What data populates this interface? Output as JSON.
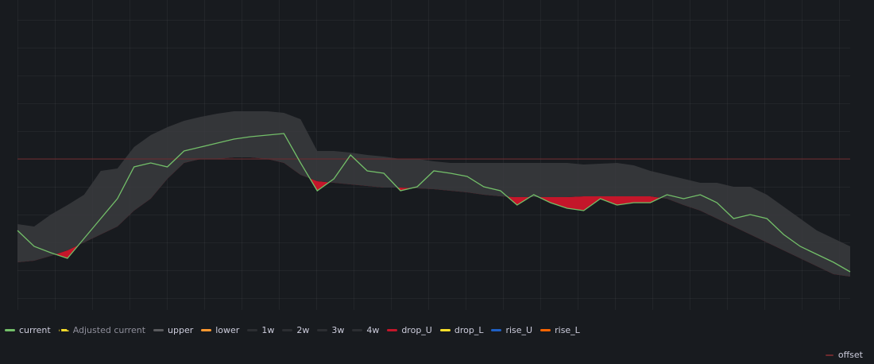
{
  "chart_data": {
    "type": "band-line",
    "ylim": [
      0,
      400
    ],
    "series": [
      {
        "name": "current",
        "color": "#73bf69",
        "role": "line",
        "values": [
          110,
          90,
          82,
          75,
          100,
          125,
          150,
          190,
          195,
          190,
          210,
          215,
          220,
          225,
          228,
          230,
          232,
          195,
          160,
          175,
          205,
          185,
          182,
          160,
          165,
          185,
          182,
          178,
          165,
          160,
          142,
          155,
          145,
          138,
          135,
          150,
          142,
          145,
          145,
          155,
          150,
          155,
          145,
          125,
          130,
          125,
          105,
          90,
          80,
          70,
          58
        ]
      },
      {
        "name": "Adjusted current",
        "color": "#fade2a",
        "dotted": true
      },
      {
        "name": "upper",
        "color": "#5a5b5e",
        "role": "upper",
        "values": [
          118,
          115,
          130,
          142,
          155,
          185,
          188,
          215,
          230,
          240,
          248,
          253,
          257,
          260,
          260,
          260,
          258,
          250,
          210,
          210,
          208,
          205,
          203,
          200,
          200,
          197,
          195,
          195,
          195,
          195,
          195,
          195,
          195,
          195,
          193,
          194,
          195,
          192,
          185,
          180,
          175,
          170,
          170,
          165,
          165,
          155,
          140,
          125,
          110,
          100,
          90
        ]
      },
      {
        "name": "lower",
        "color": "#ff9830",
        "role": "lower",
        "values": [
          70,
          72,
          78,
          85,
          95,
          105,
          115,
          135,
          150,
          175,
          195,
          200,
          200,
          202,
          202,
          200,
          195,
          180,
          172,
          170,
          168,
          166,
          164,
          164,
          163,
          162,
          160,
          158,
          155,
          153,
          152,
          152,
          152,
          152,
          153,
          153,
          153,
          153,
          153,
          150,
          142,
          135,
          125,
          115,
          105,
          95,
          85,
          75,
          65,
          55,
          52
        ]
      },
      {
        "name": "1w",
        "color": "#2c2e32"
      },
      {
        "name": "2w",
        "color": "#2c2e32"
      },
      {
        "name": "3w",
        "color": "#2c2e32"
      },
      {
        "name": "4w",
        "color": "#2c2e32"
      },
      {
        "name": "drop_U",
        "color": "#c4162a",
        "role": "drop"
      },
      {
        "name": "drop_L",
        "color": "#fade2a"
      },
      {
        "name": "rise_U",
        "color": "#1f60c4"
      },
      {
        "name": "rise_L",
        "color": "#fa6400"
      }
    ],
    "offset": {
      "name": "offset",
      "color": "#6e2a2e",
      "value": 200
    }
  }
}
